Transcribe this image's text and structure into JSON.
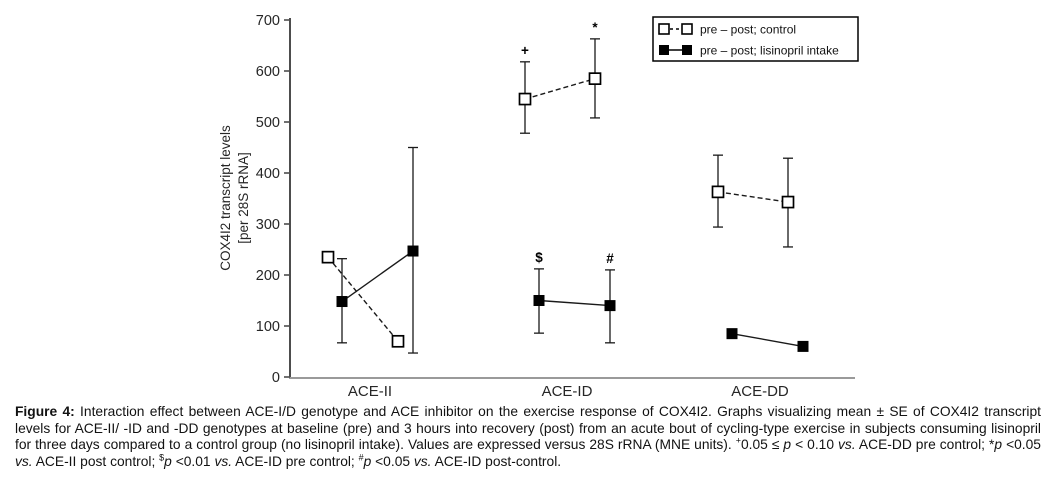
{
  "figure": {
    "caption": {
      "segments": [
        {
          "text": "Figure 4:",
          "style": "bold"
        },
        {
          "text": " Interaction effect between ACE-I/D genotype and ACE inhibitor on the exercise response of COX4I2. Graphs visualizing mean ± SE of COX4I2 transcript levels for ACE-II/ -ID and -DD genotypes at baseline (pre) and 3 hours into recovery (post) from an acute bout of cycling-type exercise in subjects consuming lisinopril for three days compared to a control group (no lisinopril intake). Values are expressed versus 28S rRNA (MNE units). ",
          "style": "normal"
        },
        {
          "text": "+",
          "style": "sup"
        },
        {
          "text": "0.05 ≤ ",
          "style": "normal"
        },
        {
          "text": "p",
          "style": "italic"
        },
        {
          "text": " < 0.10 ",
          "style": "normal"
        },
        {
          "text": "vs.",
          "style": "italic"
        },
        {
          "text": " ACE-DD pre control; *",
          "style": "normal"
        },
        {
          "text": "p",
          "style": "italic"
        },
        {
          "text": " <0.05 ",
          "style": "normal"
        },
        {
          "text": "vs.",
          "style": "italic"
        },
        {
          "text": " ACE-II post control; ",
          "style": "normal"
        },
        {
          "text": "$",
          "style": "sup"
        },
        {
          "text": "p",
          "style": "italic"
        },
        {
          "text": " <0.01 ",
          "style": "normal"
        },
        {
          "text": "vs.",
          "style": "italic"
        },
        {
          "text": " ACE-ID pre control; ",
          "style": "normal"
        },
        {
          "text": "#",
          "style": "sup"
        },
        {
          "text": "p",
          "style": "italic"
        },
        {
          "text": " <0.05 ",
          "style": "normal"
        },
        {
          "text": "vs.",
          "style": "italic"
        },
        {
          "text": " ACE-ID post-control.",
          "style": "normal"
        }
      ]
    }
  },
  "chart_data": {
    "type": "line",
    "title": "",
    "ylabel_lines": [
      "COX4I2 transcript levels",
      "[per 28S rRNA]"
    ],
    "ylim": [
      0,
      700
    ],
    "yticks": [
      0,
      100,
      200,
      300,
      400,
      500,
      600,
      700
    ],
    "categories": [
      "ACE-II",
      "ACE-ID",
      "ACE-DD"
    ],
    "times": [
      "pre",
      "post"
    ],
    "grid": false,
    "legend": {
      "position": "top-right",
      "entries": [
        {
          "label": "pre – post; control",
          "marker": "open-square",
          "line": "dashed"
        },
        {
          "label": "pre – post; lisinopril intake",
          "marker": "filled-square",
          "line": "solid"
        }
      ]
    },
    "series": [
      {
        "name": "pre – post; control",
        "marker": "open-square",
        "line": "dashed",
        "points": [
          {
            "category": "ACE-II",
            "time": "pre",
            "value": 235,
            "err_lo": null,
            "err_hi": null,
            "sig": null
          },
          {
            "category": "ACE-II",
            "time": "post",
            "value": 70,
            "err_lo": null,
            "err_hi": null,
            "sig": null
          },
          {
            "category": "ACE-ID",
            "time": "pre",
            "value": 545,
            "err_lo": 478,
            "err_hi": 618,
            "sig": "+"
          },
          {
            "category": "ACE-ID",
            "time": "post",
            "value": 585,
            "err_lo": 508,
            "err_hi": 663,
            "sig": "*"
          },
          {
            "category": "ACE-DD",
            "time": "pre",
            "value": 363,
            "err_lo": 294,
            "err_hi": 435,
            "sig": null
          },
          {
            "category": "ACE-DD",
            "time": "post",
            "value": 343,
            "err_lo": 255,
            "err_hi": 429,
            "sig": null
          }
        ]
      },
      {
        "name": "pre – post; lisinopril intake",
        "marker": "filled-square",
        "line": "solid",
        "points": [
          {
            "category": "ACE-II",
            "time": "pre",
            "value": 148,
            "err_lo": 67,
            "err_hi": 232,
            "sig": null
          },
          {
            "category": "ACE-II",
            "time": "post",
            "value": 247,
            "err_lo": 47,
            "err_hi": 450,
            "sig": null
          },
          {
            "category": "ACE-ID",
            "time": "pre",
            "value": 150,
            "err_lo": 86,
            "err_hi": 212,
            "sig": "$"
          },
          {
            "category": "ACE-ID",
            "time": "post",
            "value": 140,
            "err_lo": 67,
            "err_hi": 210,
            "sig": "#"
          },
          {
            "category": "ACE-DD",
            "time": "pre",
            "value": 85,
            "err_lo": null,
            "err_hi": null,
            "sig": null
          },
          {
            "category": "ACE-DD",
            "time": "post",
            "value": 60,
            "err_lo": null,
            "err_hi": null,
            "sig": null
          }
        ]
      }
    ],
    "colors": {
      "marker": "#000000",
      "error_bar": "#1a1a1a",
      "y_axis": "#4d4d4d",
      "x_axis": "#9a9a9a",
      "tick_label": "#262626",
      "legend_border": "#000000"
    }
  }
}
